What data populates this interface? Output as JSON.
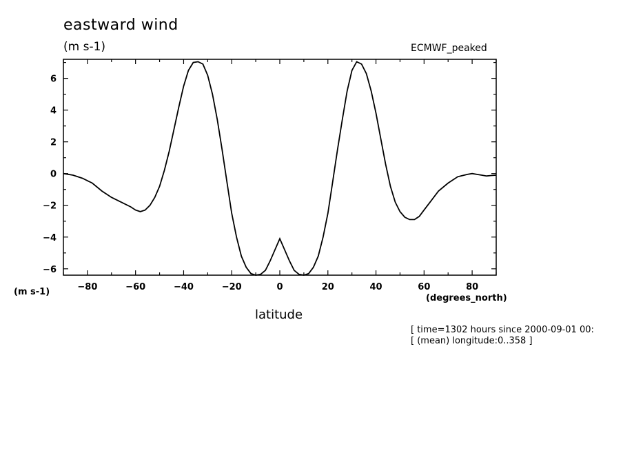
{
  "chart_data": {
    "type": "line",
    "title": "eastward wind",
    "units_label": "(m s-1)",
    "dataset_label": "ECMWF_peaked",
    "xlabel": "latitude",
    "xunits_label": "(degrees_north)",
    "yunits_label": "(m s-1)",
    "annotations": [
      "[ time=1302 hours since 2000-09-01 00:",
      "[ (mean) longitude:0..358 ]"
    ],
    "xlim": [
      -90,
      90
    ],
    "ylim": [
      -6.4,
      7.2
    ],
    "x_ticks": [
      -80,
      -60,
      -40,
      -20,
      0,
      20,
      40,
      60,
      80
    ],
    "y_ticks": [
      -6,
      -4,
      -2,
      0,
      2,
      4,
      6
    ],
    "grid": false,
    "line_color": "#000000",
    "series": [
      {
        "x": [
          -90,
          -86,
          -82,
          -78,
          -74,
          -70,
          -66,
          -62,
          -60,
          -58,
          -56,
          -54,
          -52,
          -50,
          -48,
          -46,
          -44,
          -42,
          -40,
          -38,
          -36,
          -34,
          -32,
          -30,
          -28,
          -26,
          -24,
          -22,
          -20,
          -18,
          -16,
          -14,
          -12,
          -10,
          -8,
          -6,
          -4,
          -2,
          0,
          2,
          4,
          6,
          8,
          10,
          12,
          14,
          16,
          18,
          20,
          22,
          24,
          26,
          28,
          30,
          32,
          34,
          36,
          38,
          40,
          42,
          44,
          46,
          48,
          50,
          52,
          54,
          56,
          58,
          60,
          62,
          66,
          70,
          74,
          78,
          80,
          82,
          84,
          86,
          88,
          90
        ],
        "y": [
          0,
          -0.1,
          -0.3,
          -0.6,
          -1.1,
          -1.5,
          -1.8,
          -2.1,
          -2.3,
          -2.4,
          -2.3,
          -2.0,
          -1.5,
          -0.8,
          0.2,
          1.4,
          2.8,
          4.2,
          5.5,
          6.5,
          7.0,
          7.05,
          6.9,
          6.2,
          5.0,
          3.4,
          1.5,
          -0.5,
          -2.5,
          -4.0,
          -5.2,
          -5.9,
          -6.3,
          -6.4,
          -6.35,
          -6.1,
          -5.5,
          -4.8,
          -4.1,
          -4.8,
          -5.5,
          -6.1,
          -6.35,
          -6.4,
          -6.3,
          -5.9,
          -5.2,
          -4.0,
          -2.5,
          -0.5,
          1.5,
          3.4,
          5.2,
          6.5,
          7.05,
          6.9,
          6.3,
          5.2,
          3.8,
          2.2,
          0.6,
          -0.8,
          -1.8,
          -2.4,
          -2.75,
          -2.9,
          -2.9,
          -2.7,
          -2.3,
          -1.9,
          -1.1,
          -0.6,
          -0.2,
          -0.05,
          0,
          -0.05,
          -0.1,
          -0.15,
          -0.12,
          -0.1
        ]
      }
    ]
  }
}
